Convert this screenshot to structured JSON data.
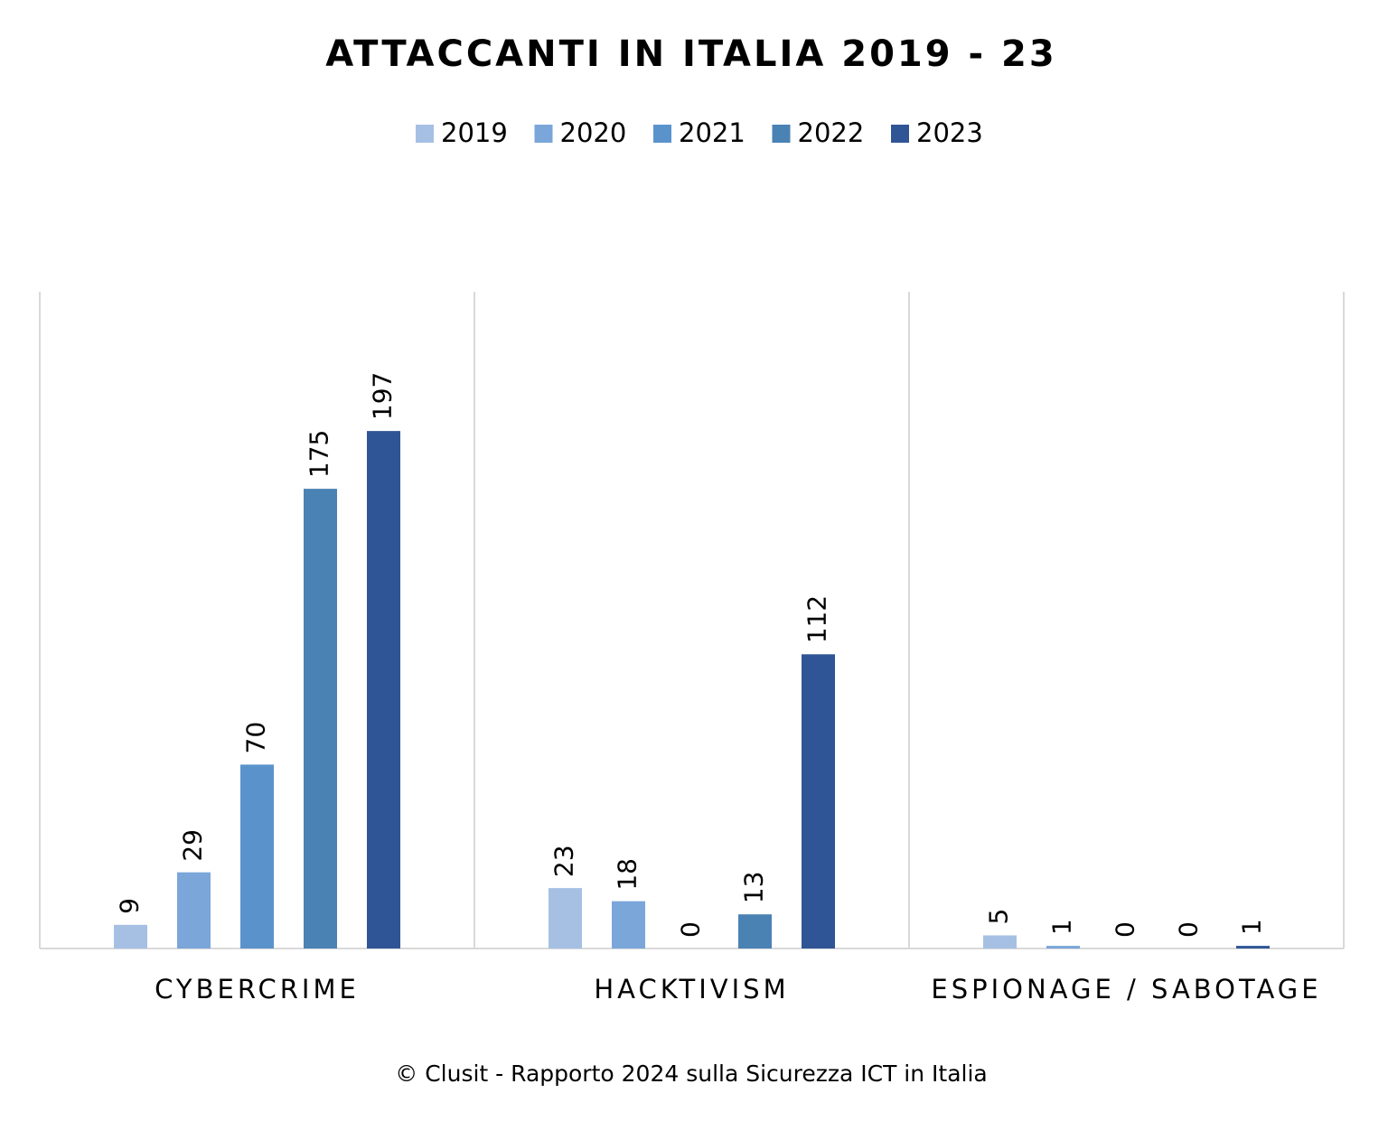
{
  "chart_data": {
    "type": "bar",
    "title": "ATTACCANTI IN ITALIA 2019 - 23",
    "categories": [
      "CYBERCRIME",
      "HACKTIVISM",
      "ESPIONAGE / SABOTAGE"
    ],
    "series": [
      {
        "name": "2019",
        "color": "#a6c0e4",
        "values": [
          9,
          23,
          5
        ]
      },
      {
        "name": "2020",
        "color": "#7aa6da",
        "values": [
          29,
          18,
          1
        ]
      },
      {
        "name": "2021",
        "color": "#5a93cc",
        "values": [
          70,
          0,
          0
        ]
      },
      {
        "name": "2022",
        "color": "#4a82b4",
        "values": [
          175,
          13,
          0
        ]
      },
      {
        "name": "2023",
        "color": "#305596",
        "values": [
          197,
          112,
          1
        ]
      }
    ],
    "ylim": [
      0,
      250
    ],
    "legend": "top",
    "footer": "© Clusit - Rapporto 2024 sulla Sicurezza ICT in Italia"
  }
}
